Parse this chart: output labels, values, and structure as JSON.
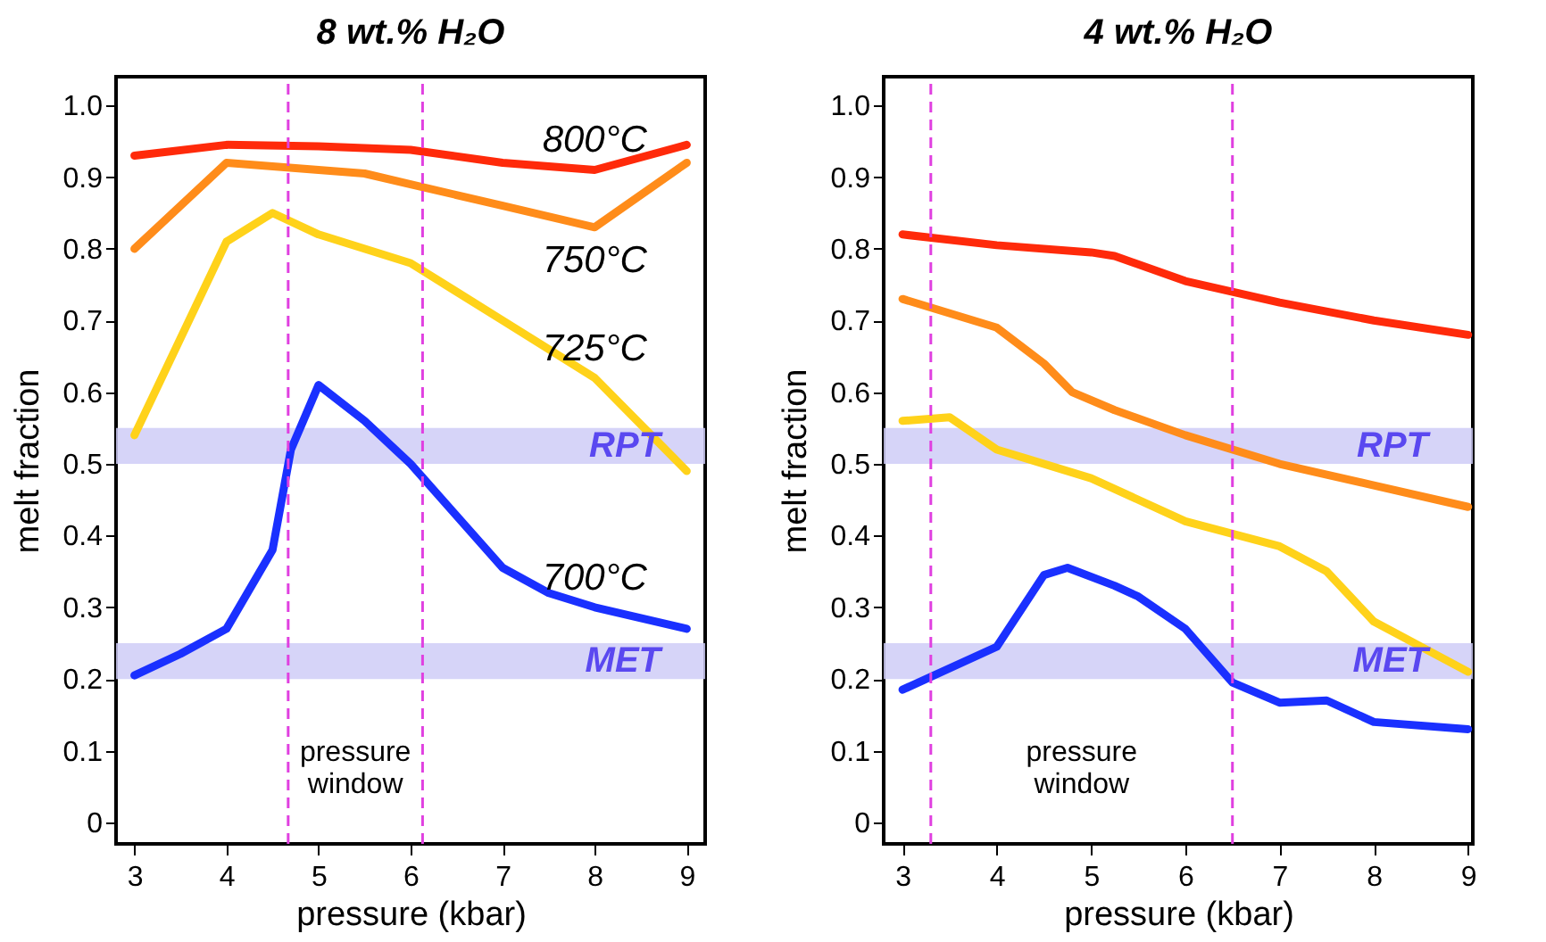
{
  "chart_data": [
    {
      "type": "line",
      "title": "8 wt.% H₂O",
      "xlabel": "pressure (kbar)",
      "ylabel": "melt fraction",
      "xlim": [
        2.8,
        9.2
      ],
      "ylim": [
        -0.03,
        1.04
      ],
      "xticks": [
        3,
        4,
        5,
        6,
        7,
        8,
        9
      ],
      "yticks": [
        0,
        0.1,
        0.2,
        0.3,
        0.4,
        0.5,
        0.6,
        0.7,
        0.8,
        0.9,
        {
          "value": 1,
          "label": "1.0"
        }
      ],
      "grid": false,
      "marker": "none",
      "line_style": "solid",
      "series": [
        {
          "name": "800°C",
          "color": "#ff2a0a",
          "x": [
            3,
            4,
            5,
            6,
            7,
            8,
            9
          ],
          "values": [
            0.93,
            0.945,
            0.943,
            0.938,
            0.92,
            0.91,
            0.945
          ]
        },
        {
          "name": "750°C",
          "color": "#ff8c1a",
          "x": [
            3,
            4,
            5,
            5.5,
            6,
            7,
            8,
            9
          ],
          "values": [
            0.8,
            0.92,
            0.91,
            0.905,
            0.89,
            0.86,
            0.83,
            0.92
          ]
        },
        {
          "name": "725°C",
          "color": "#ffd21a",
          "x": [
            3,
            4,
            4.5,
            5,
            6,
            7,
            8,
            9
          ],
          "values": [
            0.54,
            0.81,
            0.85,
            0.82,
            0.78,
            0.7,
            0.62,
            0.49
          ]
        },
        {
          "name": "700°C",
          "color": "#1a30ff",
          "x": [
            3,
            3.5,
            4,
            4.5,
            4.7,
            5,
            5.5,
            6,
            7,
            7.5,
            8,
            9
          ],
          "values": [
            0.205,
            0.235,
            0.27,
            0.38,
            0.52,
            0.61,
            0.56,
            0.5,
            0.355,
            0.32,
            0.3,
            0.27
          ]
        }
      ],
      "bands": [
        {
          "axis": "y",
          "from": 0.5,
          "to": 0.55,
          "label": "RPT",
          "color": "#cfcdf7"
        },
        {
          "axis": "y",
          "from": 0.2,
          "to": 0.25,
          "label": "MET",
          "color": "#cfcdf7"
        }
      ],
      "ref_lines": [
        {
          "axis": "x",
          "value": 4.67,
          "color": "#e040e0",
          "line_style": "dashed"
        },
        {
          "axis": "x",
          "value": 6.13,
          "color": "#e040e0",
          "line_style": "dashed"
        }
      ],
      "annotations": [
        "pressure window"
      ]
    },
    {
      "type": "line",
      "title": "4 wt.% H₂O",
      "xlabel": "pressure (kbar)",
      "ylabel": "melt fraction",
      "xlim": [
        2.8,
        9.05
      ],
      "ylim": [
        -0.03,
        1.04
      ],
      "xticks": [
        3,
        4,
        5,
        6,
        7,
        8,
        9
      ],
      "yticks": [
        0,
        0.1,
        0.2,
        0.3,
        0.4,
        0.5,
        0.6,
        0.7,
        0.8,
        0.9,
        {
          "value": 1,
          "label": "1.0"
        }
      ],
      "grid": false,
      "marker": "none",
      "line_style": "solid",
      "series": [
        {
          "color": "#ff2a0a",
          "x": [
            3,
            4,
            5,
            5.25,
            6,
            7,
            8,
            9
          ],
          "values": [
            0.82,
            0.805,
            0.795,
            0.79,
            0.755,
            0.725,
            0.7,
            0.68
          ]
        },
        {
          "color": "#ff8c1a",
          "x": [
            3,
            4,
            4.5,
            4.8,
            5.25,
            6,
            7,
            8,
            9
          ],
          "values": [
            0.73,
            0.69,
            0.64,
            0.6,
            0.575,
            0.54,
            0.5,
            0.47,
            0.44
          ]
        },
        {
          "color": "#ffd21a",
          "x": [
            3,
            3.5,
            4,
            5,
            6,
            7,
            7.5,
            8,
            9
          ],
          "values": [
            0.56,
            0.565,
            0.52,
            0.48,
            0.42,
            0.385,
            0.35,
            0.28,
            0.21
          ]
        },
        {
          "color": "#1a30ff",
          "x": [
            3,
            4,
            4.5,
            4.75,
            5.25,
            5.5,
            6,
            6.5,
            7,
            7.5,
            8,
            9
          ],
          "values": [
            0.185,
            0.245,
            0.345,
            0.355,
            0.33,
            0.315,
            0.27,
            0.195,
            0.167,
            0.17,
            0.14,
            0.13
          ]
        }
      ],
      "bands": [
        {
          "axis": "y",
          "from": 0.5,
          "to": 0.55,
          "label": "RPT",
          "color": "#cfcdf7"
        },
        {
          "axis": "y",
          "from": 0.2,
          "to": 0.25,
          "label": "MET",
          "color": "#cfcdf7"
        }
      ],
      "ref_lines": [
        {
          "axis": "x",
          "value": 3.3,
          "color": "#e040e0",
          "line_style": "dashed"
        },
        {
          "axis": "x",
          "value": 6.5,
          "color": "#e040e0",
          "line_style": "dashed"
        }
      ],
      "annotations": [
        "pressure window"
      ]
    }
  ]
}
